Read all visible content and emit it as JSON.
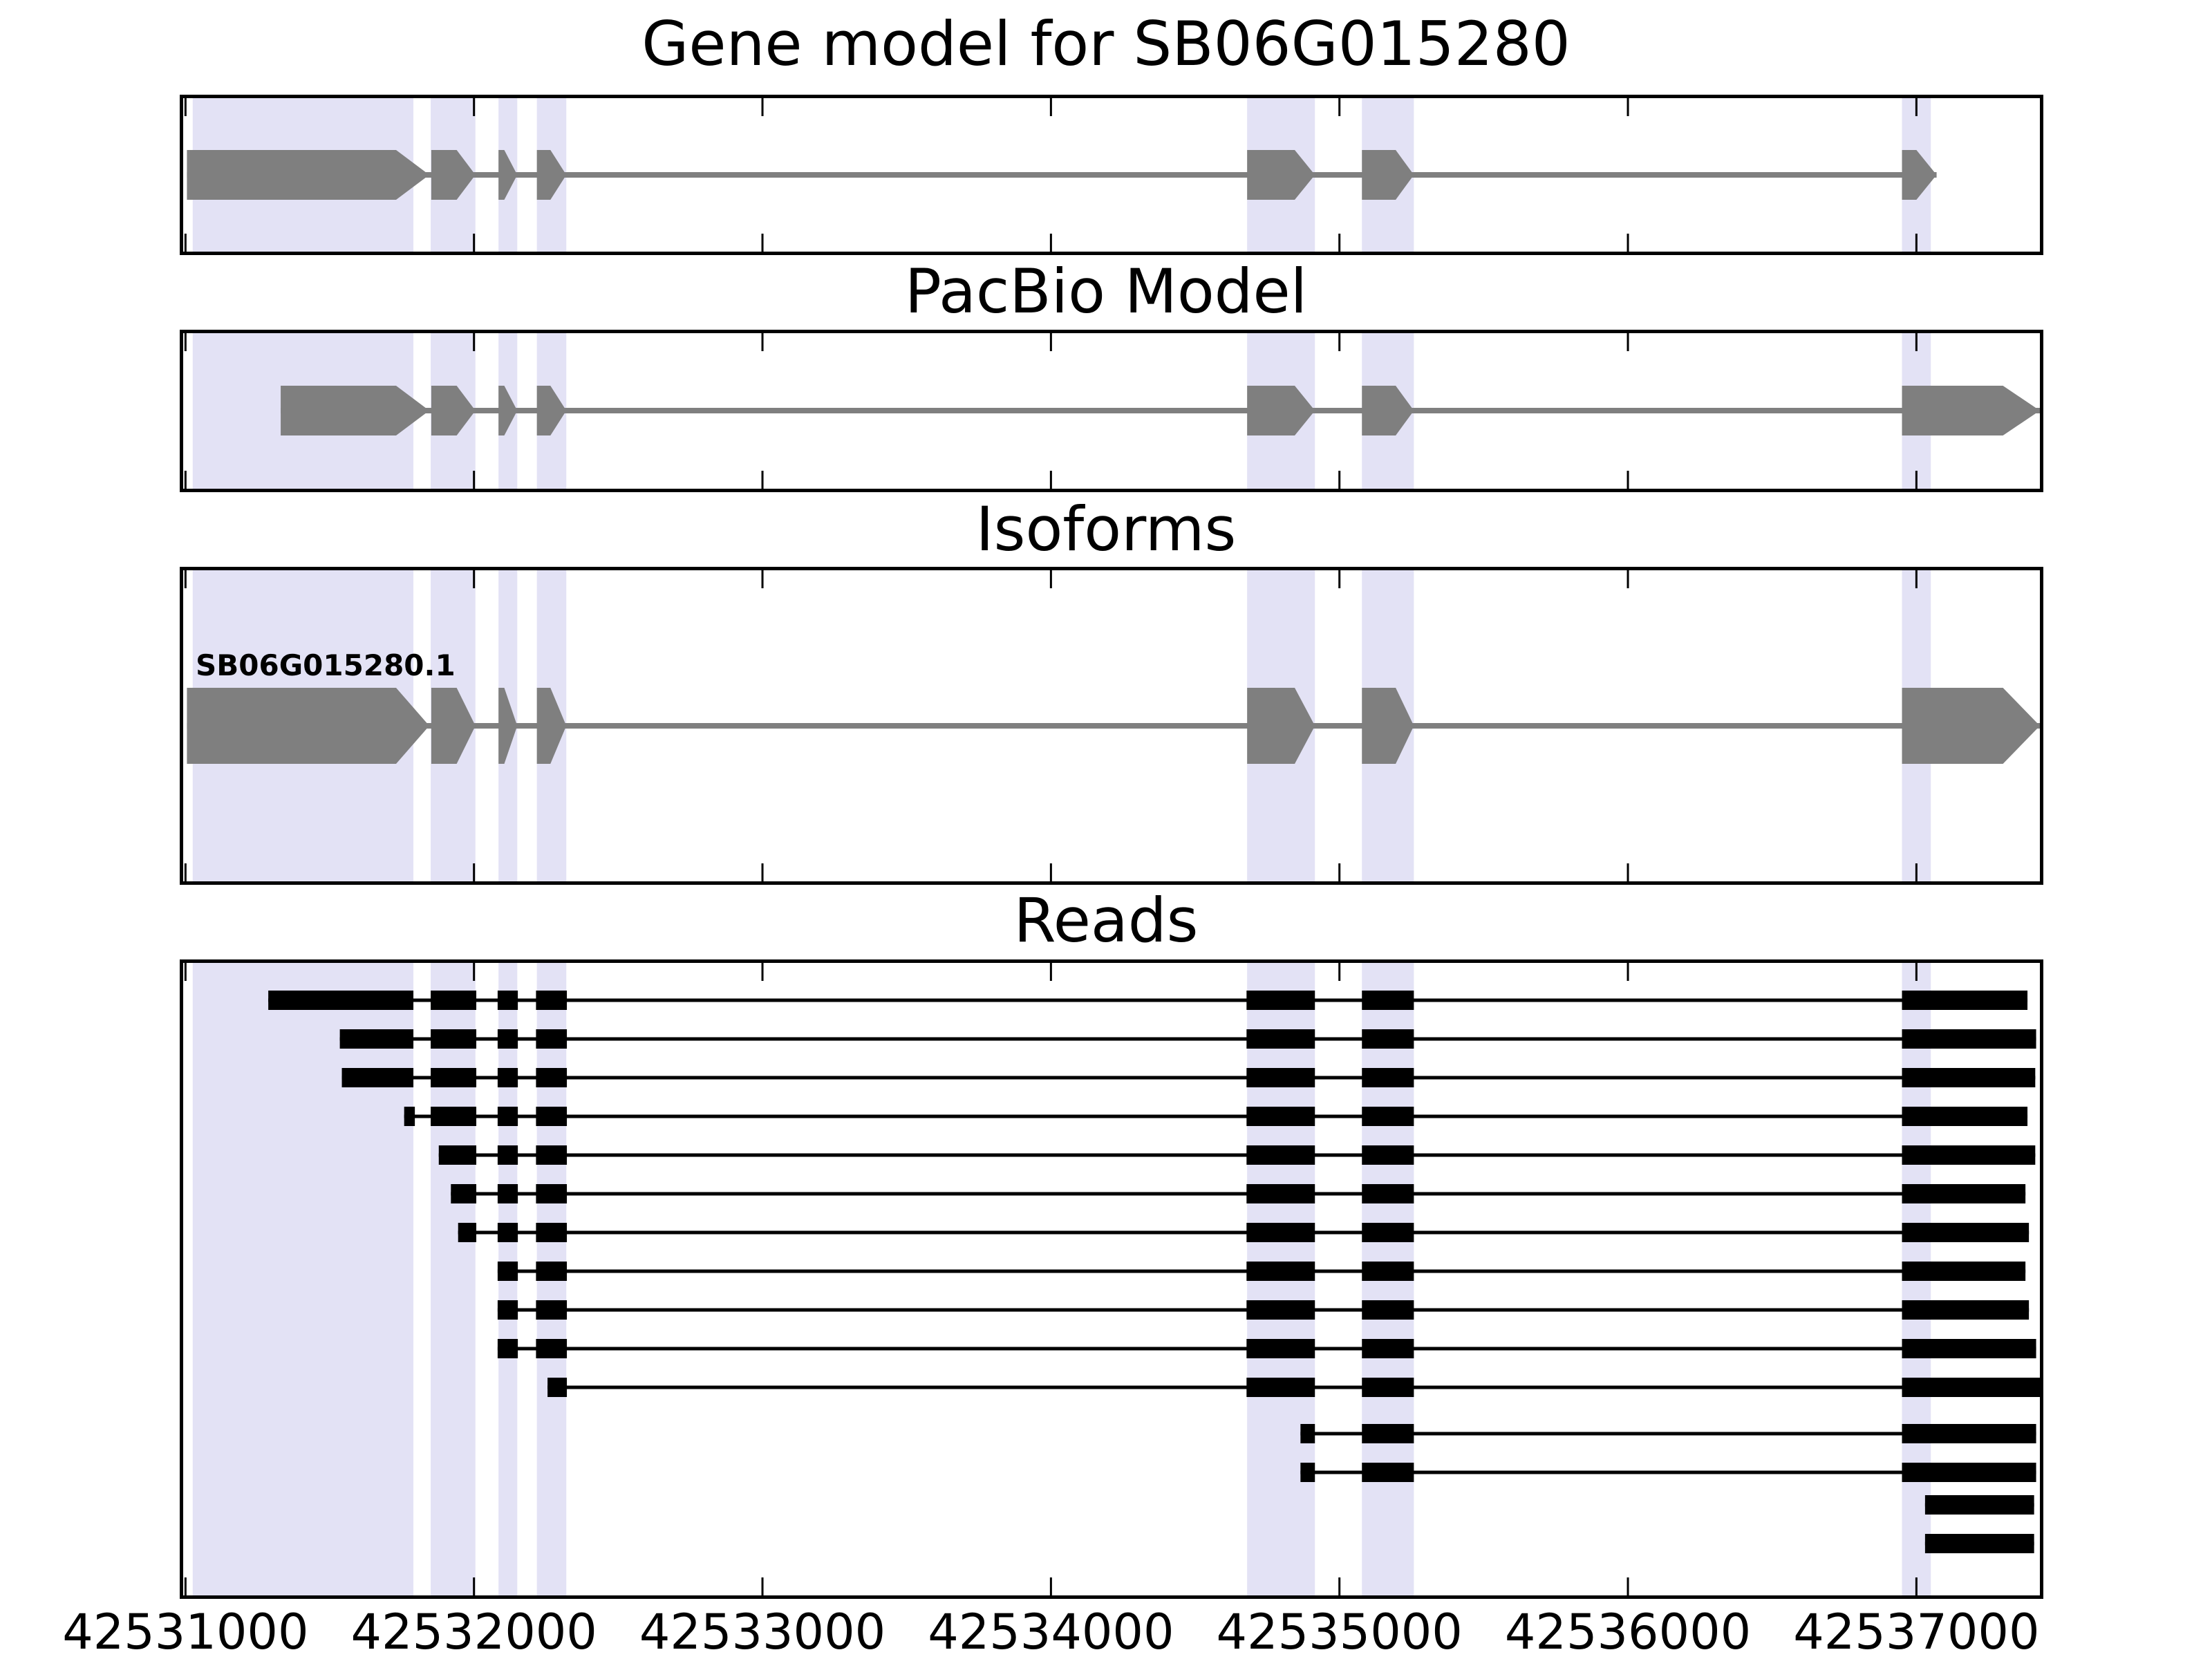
{
  "titles": {
    "panel1": "Gene model for SB06G015280",
    "panel2": "PacBio Model",
    "panel3": "Isoforms",
    "panel4": "Reads"
  },
  "colors": {
    "background": "#ffffff",
    "highlight_band": "#e3e2f5",
    "model_gray": "#7f7f7f",
    "read_black": "#000000",
    "border": "#000000",
    "text": "#000000"
  },
  "chart_data": {
    "type": "gene-model-tracks",
    "title": "Gene model for SB06G015280",
    "x_range": [
      42530980,
      42537440
    ],
    "grid": false,
    "axis": {
      "ticks": [
        {
          "pos": 42531000,
          "label": "42531000"
        },
        {
          "pos": 42532000,
          "label": "42532000"
        },
        {
          "pos": 42533000,
          "label": "42533000"
        },
        {
          "pos": 42534000,
          "label": "42534000"
        },
        {
          "pos": 42535000,
          "label": "42535000"
        },
        {
          "pos": 42536000,
          "label": "42536000"
        },
        {
          "pos": 42537000,
          "label": "42537000"
        }
      ]
    },
    "highlight_regions": [
      [
        42531025,
        42531790
      ],
      [
        42531850,
        42532005
      ],
      [
        42532085,
        42532150
      ],
      [
        42532218,
        42532320
      ],
      [
        42534680,
        42534915
      ],
      [
        42535078,
        42535258
      ],
      [
        42536950,
        42537050
      ]
    ],
    "tracks": {
      "gene_model": {
        "title": "Gene model for SB06G015280",
        "strand": "+",
        "line": [
          42531005,
          42537070
        ],
        "exons": [
          {
            "start": 42531005,
            "box_end": 42531730,
            "tip": 42531845
          },
          {
            "start": 42531852,
            "box_end": 42531940,
            "tip": 42532005
          },
          {
            "start": 42532085,
            "box_end": 42532105,
            "tip": 42532150
          },
          {
            "start": 42532218,
            "box_end": 42532265,
            "tip": 42532320
          },
          {
            "start": 42534680,
            "box_end": 42534845,
            "tip": 42534915
          },
          {
            "start": 42535078,
            "box_end": 42535195,
            "tip": 42535258
          },
          {
            "start": 42536950,
            "box_end": 42537000,
            "tip": 42537070
          }
        ]
      },
      "pacbio_model": {
        "title": "PacBio Model",
        "strand": "+",
        "line": [
          42531330,
          42537428
        ],
        "exons": [
          {
            "start": 42531330,
            "box_end": 42531730,
            "tip": 42531845
          },
          {
            "start": 42531852,
            "box_end": 42531940,
            "tip": 42532005
          },
          {
            "start": 42532085,
            "box_end": 42532105,
            "tip": 42532150
          },
          {
            "start": 42532218,
            "box_end": 42532265,
            "tip": 42532320
          },
          {
            "start": 42534680,
            "box_end": 42534845,
            "tip": 42534915
          },
          {
            "start": 42535078,
            "box_end": 42535195,
            "tip": 42535258
          },
          {
            "start": 42536950,
            "box_end": 42537300,
            "tip": 42537428
          }
        ]
      },
      "isoforms": [
        {
          "name": "SB06G015280.1",
          "strand": "+",
          "line": [
            42531005,
            42537428
          ],
          "exons": [
            {
              "start": 42531005,
              "box_end": 42531730,
              "tip": 42531845
            },
            {
              "start": 42531852,
              "box_end": 42531940,
              "tip": 42532005
            },
            {
              "start": 42532085,
              "box_end": 42532105,
              "tip": 42532150
            },
            {
              "start": 42532218,
              "box_end": 42532265,
              "tip": 42532320
            },
            {
              "start": 42534680,
              "box_end": 42534845,
              "tip": 42534915
            },
            {
              "start": 42535078,
              "box_end": 42535195,
              "tip": 42535258
            },
            {
              "start": 42536950,
              "box_end": 42537300,
              "tip": 42537428
            }
          ]
        }
      ],
      "reads": [
        {
          "exons": [
            [
              42531287,
              42531790
            ],
            [
              42531850,
              42532008
            ],
            [
              42532082,
              42532152
            ],
            [
              42532215,
              42532322
            ],
            [
              42534678,
              42534915
            ],
            [
              42535078,
              42535258
            ],
            [
              42536950,
              42537385
            ]
          ]
        },
        {
          "exons": [
            [
              42531535,
              42531790
            ],
            [
              42531850,
              42532008
            ],
            [
              42532082,
              42532152
            ],
            [
              42532215,
              42532322
            ],
            [
              42534678,
              42534915
            ],
            [
              42535078,
              42535258
            ],
            [
              42536950,
              42537415
            ]
          ]
        },
        {
          "exons": [
            [
              42531542,
              42531790
            ],
            [
              42531850,
              42532008
            ],
            [
              42532082,
              42532152
            ],
            [
              42532215,
              42532322
            ],
            [
              42534678,
              42534915
            ],
            [
              42535078,
              42535258
            ],
            [
              42536950,
              42537412
            ]
          ]
        },
        {
          "exons": [
            [
              42531758,
              42531795
            ],
            [
              42531850,
              42532008
            ],
            [
              42532082,
              42532152
            ],
            [
              42532215,
              42532322
            ],
            [
              42534678,
              42534915
            ],
            [
              42535078,
              42535258
            ],
            [
              42536950,
              42537385
            ]
          ]
        },
        {
          "exons": [
            [
              42531878,
              42532008
            ],
            [
              42532082,
              42532152
            ],
            [
              42532215,
              42532322
            ],
            [
              42534678,
              42534915
            ],
            [
              42535078,
              42535258
            ],
            [
              42536950,
              42537412
            ]
          ]
        },
        {
          "exons": [
            [
              42531920,
              42532008
            ],
            [
              42532082,
              42532152
            ],
            [
              42532215,
              42532322
            ],
            [
              42534678,
              42534915
            ],
            [
              42535078,
              42535258
            ],
            [
              42536950,
              42537378
            ]
          ]
        },
        {
          "exons": [
            [
              42531945,
              42532008
            ],
            [
              42532082,
              42532152
            ],
            [
              42532215,
              42532322
            ],
            [
              42534678,
              42534915
            ],
            [
              42535078,
              42535258
            ],
            [
              42536950,
              42537390
            ]
          ]
        },
        {
          "exons": [
            [
              42532082,
              42532152
            ],
            [
              42532215,
              42532322
            ],
            [
              42534678,
              42534915
            ],
            [
              42535078,
              42535258
            ],
            [
              42536950,
              42537378
            ]
          ]
        },
        {
          "exons": [
            [
              42532082,
              42532152
            ],
            [
              42532215,
              42532322
            ],
            [
              42534678,
              42534915
            ],
            [
              42535078,
              42535258
            ],
            [
              42536950,
              42537390
            ]
          ]
        },
        {
          "exons": [
            [
              42532082,
              42532152
            ],
            [
              42532215,
              42532322
            ],
            [
              42534678,
              42534915
            ],
            [
              42535078,
              42535258
            ],
            [
              42536950,
              42537415
            ]
          ]
        },
        {
          "exons": [
            [
              42532255,
              42532322
            ],
            [
              42534678,
              42534915
            ],
            [
              42535078,
              42535258
            ],
            [
              42536950,
              42537430
            ]
          ]
        },
        {
          "exons": [
            [
              42534865,
              42534915
            ],
            [
              42535078,
              42535258
            ],
            [
              42536950,
              42537415
            ]
          ]
        },
        {
          "exons": [
            [
              42534865,
              42534915
            ],
            [
              42535078,
              42535258
            ],
            [
              42536950,
              42537415
            ]
          ]
        },
        {
          "exons": [
            [
              42537030,
              42537408
            ]
          ]
        },
        {
          "exons": [
            [
              42537030,
              42537408
            ]
          ]
        }
      ]
    }
  }
}
